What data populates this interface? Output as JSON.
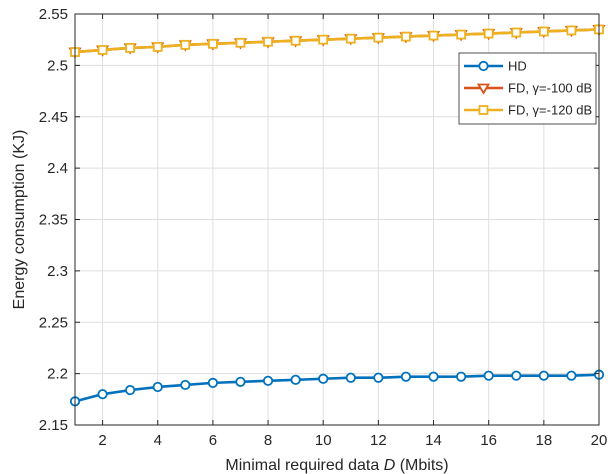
{
  "chart_data": {
    "type": "line",
    "xlabel_parts": [
      "Minimal required data ",
      "D",
      " (Mbits)"
    ],
    "ylabel": "Energy consumption (KJ)",
    "xlim": [
      1,
      20
    ],
    "ylim": [
      2.15,
      2.55
    ],
    "xticks": [
      2,
      4,
      6,
      8,
      10,
      12,
      14,
      16,
      18,
      20
    ],
    "yticks": [
      2.15,
      2.2,
      2.25,
      2.3,
      2.35,
      2.4,
      2.45,
      2.5,
      2.55
    ],
    "ytick_labels": [
      "2.15",
      "2.2",
      "2.25",
      "2.3",
      "2.35",
      "2.4",
      "2.45",
      "2.5",
      "2.55"
    ],
    "grid": true,
    "legend_position": "top-right",
    "x": [
      1,
      2,
      3,
      4,
      5,
      6,
      7,
      8,
      9,
      10,
      11,
      12,
      13,
      14,
      15,
      16,
      17,
      18,
      19,
      20
    ],
    "series": [
      {
        "name": "HD",
        "color": "#0072BD",
        "marker": "circle",
        "values": [
          2.173,
          2.18,
          2.184,
          2.187,
          2.189,
          2.191,
          2.192,
          2.193,
          2.194,
          2.195,
          2.196,
          2.196,
          2.197,
          2.197,
          2.197,
          2.198,
          2.198,
          2.198,
          2.198,
          2.199
        ]
      },
      {
        "name": "FD, γ=-100 dB",
        "color": "#D95319",
        "marker": "triangle-down",
        "values": [
          2.513,
          2.515,
          2.517,
          2.518,
          2.52,
          2.521,
          2.522,
          2.523,
          2.524,
          2.525,
          2.526,
          2.527,
          2.528,
          2.529,
          2.53,
          2.531,
          2.532,
          2.533,
          2.534,
          2.535
        ]
      },
      {
        "name": "FD, γ=-120 dB",
        "color": "#EDB120",
        "marker": "square",
        "values": [
          2.513,
          2.515,
          2.517,
          2.518,
          2.52,
          2.521,
          2.522,
          2.523,
          2.524,
          2.525,
          2.526,
          2.527,
          2.528,
          2.529,
          2.53,
          2.531,
          2.532,
          2.533,
          2.534,
          2.535
        ]
      }
    ]
  }
}
